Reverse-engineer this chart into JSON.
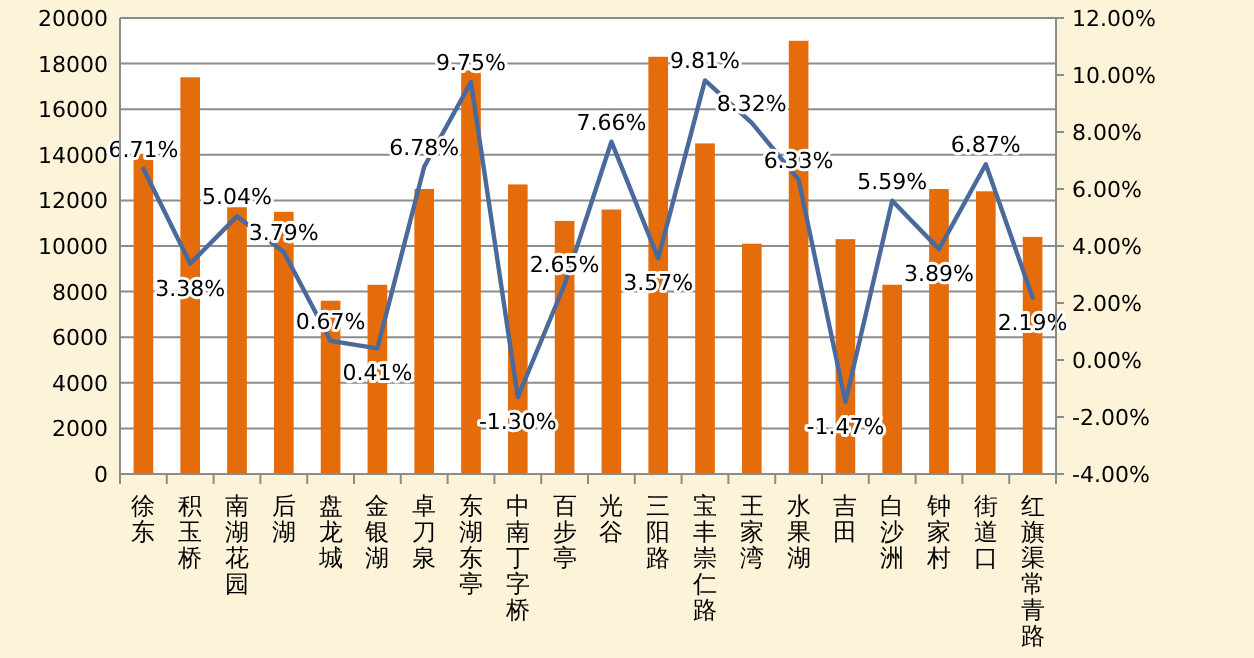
{
  "chart_data": {
    "type": "bar",
    "categories": [
      "徐东",
      "积玉桥",
      "南湖花园",
      "后湖",
      "盘龙城",
      "金银湖",
      "卓刀泉",
      "东湖东亭",
      "中南丁字桥",
      "百步亭",
      "光谷",
      "三阳路",
      "宝丰崇仁路",
      "王家湾",
      "水果湖",
      "吉田",
      "白沙洲",
      "钟家村",
      "街道口",
      "红旗渠常青路"
    ],
    "series": [
      {
        "color": "#e46c0a",
        "values": [
          14000,
          17400,
          11700,
          11500,
          7600,
          8300,
          12500,
          17700,
          12700,
          11100,
          11600,
          18300,
          14500,
          10100,
          19000,
          10300,
          8300,
          12500,
          12400,
          10400
        ]
      },
      {
        "type": "line",
        "axis": "y2",
        "color": "#4a6a9c",
        "marker": "none",
        "values": [
          6.71,
          3.38,
          5.04,
          3.79,
          0.67,
          0.41,
          6.78,
          9.75,
          -1.3,
          2.65,
          7.66,
          3.57,
          9.81,
          8.32,
          6.33,
          -1.47,
          5.59,
          3.89,
          6.87,
          2.19
        ],
        "value_labels": [
          "6.71%",
          "3.38%",
          "5.04%",
          "3.79%",
          "0.67%",
          "0.41%",
          "6.78%",
          "9.75%",
          "-1.30%",
          "2.65%",
          "7.66%",
          "3.57%",
          "9.81%",
          "8.32%",
          "6.33%",
          "-1.47%",
          "5.59%",
          "3.89%",
          "6.87%",
          "2.19%"
        ]
      }
    ],
    "ylim": [
      0,
      20000
    ],
    "yticks": [
      0,
      2000,
      4000,
      6000,
      8000,
      10000,
      12000,
      14000,
      16000,
      18000,
      20000
    ],
    "y2lim": [
      -4,
      12
    ],
    "y2ticks": [
      {
        "value": -4,
        "label": "-4.00%"
      },
      {
        "value": -2,
        "label": "-2.00%"
      },
      {
        "value": 0,
        "label": "0.00%"
      },
      {
        "value": 2,
        "label": "2.00%"
      },
      {
        "value": 4,
        "label": "4.00%"
      },
      {
        "value": 6,
        "label": "6.00%"
      },
      {
        "value": 8,
        "label": "8.00%"
      },
      {
        "value": 10,
        "label": "10.00%"
      },
      {
        "value": 12,
        "label": "12.00%"
      }
    ],
    "grid": "y"
  }
}
